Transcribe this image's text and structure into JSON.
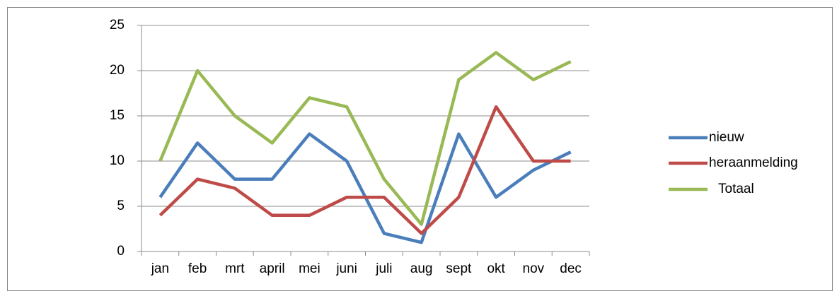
{
  "chart_data": {
    "type": "line",
    "categories": [
      "jan",
      "feb",
      "mrt",
      "april",
      "mei",
      "juni",
      "juli",
      "aug",
      "sept",
      "okt",
      "nov",
      "dec"
    ],
    "series": [
      {
        "name": "nieuw",
        "color": "#4a7ebb",
        "values": [
          6,
          12,
          8,
          8,
          13,
          10,
          2,
          1,
          13,
          6,
          9,
          11
        ]
      },
      {
        "name": "heraanmelding",
        "color": "#be4b48",
        "values": [
          4,
          8,
          7,
          4,
          4,
          6,
          6,
          2,
          6,
          16,
          10,
          10
        ]
      },
      {
        "name": "Totaal",
        "color": "#98b954",
        "values": [
          10,
          20,
          15,
          12,
          17,
          16,
          8,
          3,
          19,
          22,
          19,
          21
        ]
      }
    ],
    "ylim": [
      0,
      25
    ],
    "yticks": [
      0,
      5,
      10,
      15,
      20,
      25
    ],
    "grid": true,
    "legend": "right"
  }
}
